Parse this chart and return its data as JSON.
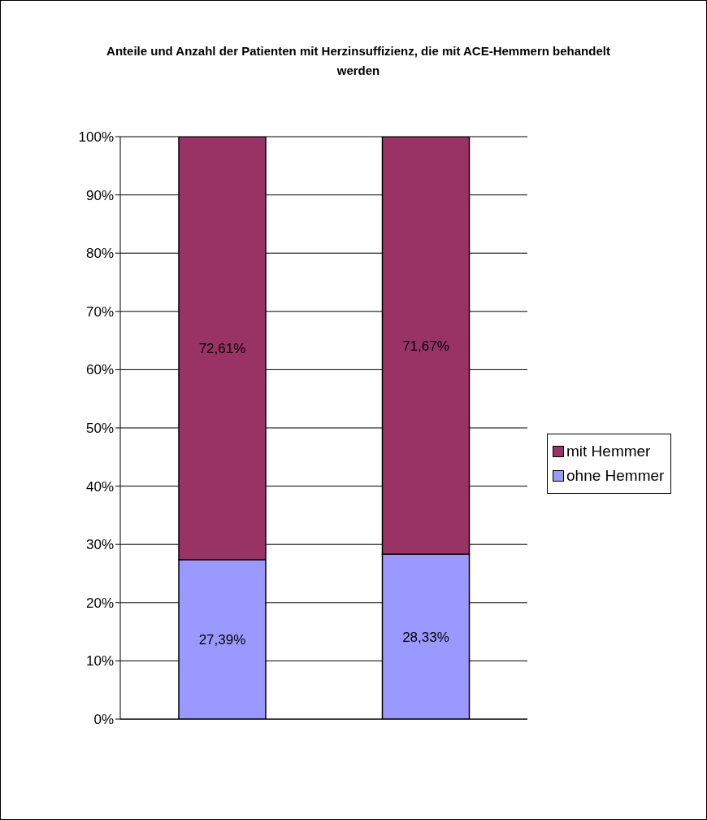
{
  "chart_data": {
    "type": "bar",
    "title": "Anteile und Anzahl der Patienten mit Herzinsuffizienz, die mit ACE-Hemmern behandelt werden",
    "categories": [
      null,
      null
    ],
    "stacked": true,
    "series": [
      {
        "name": "ohne Hemmer",
        "color": "#9999ff",
        "values": [
          27.39,
          28.33
        ],
        "value_labels": [
          "27,39%",
          "28,33%"
        ]
      },
      {
        "name": "mit Hemmer",
        "color": "#993366",
        "values": [
          72.61,
          71.67
        ],
        "value_labels": [
          "72,61%",
          "71,67%"
        ]
      }
    ],
    "ylim": [
      0,
      100
    ],
    "yticks": [
      {
        "value": 0,
        "label": "0%"
      },
      {
        "value": 10,
        "label": "10%"
      },
      {
        "value": 20,
        "label": "20%"
      },
      {
        "value": 30,
        "label": "30%"
      },
      {
        "value": 40,
        "label": "40%"
      },
      {
        "value": 50,
        "label": "50%"
      },
      {
        "value": 60,
        "label": "60%"
      },
      {
        "value": 70,
        "label": "70%"
      },
      {
        "value": 80,
        "label": "80%"
      },
      {
        "value": 90,
        "label": "90%"
      },
      {
        "value": 100,
        "label": "100%"
      }
    ],
    "grid": "y",
    "legend": "right"
  }
}
